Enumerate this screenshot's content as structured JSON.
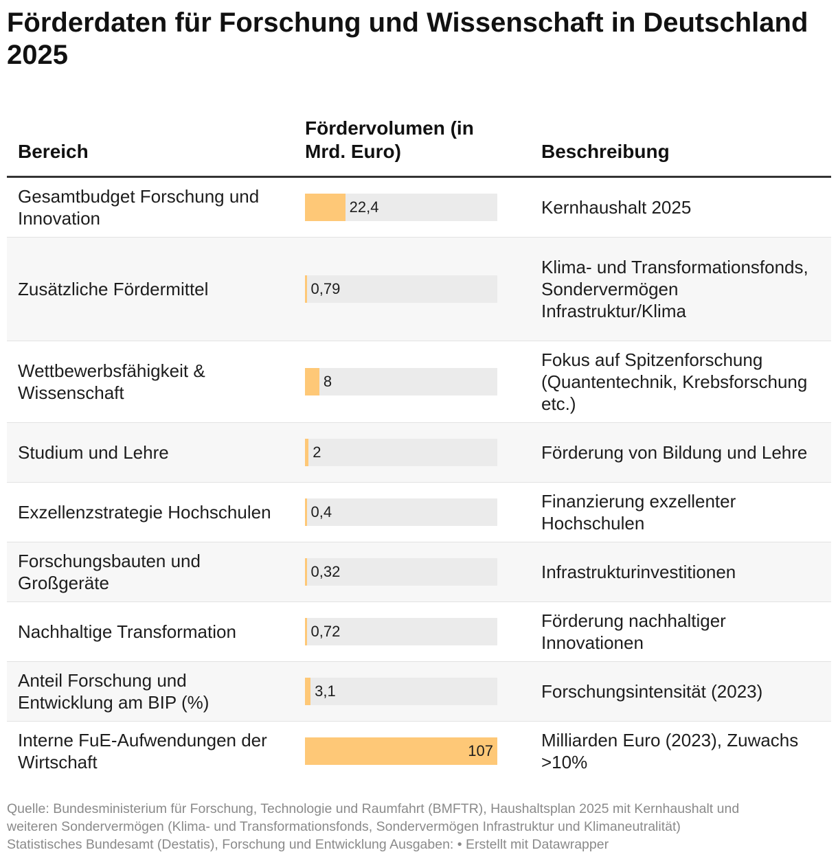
{
  "title": "Förderdaten für Forschung und Wissenschaft in Deutschland 2025",
  "columns": {
    "bereich": "Bereich",
    "volumen": "Fördervolumen (in Mrd. Euro)",
    "beschreibung": "Beschreibung"
  },
  "colors": {
    "bar": "#fec877",
    "track": "#ebebeb",
    "stripe": "#f7f7f7"
  },
  "chart_data": {
    "type": "table",
    "title": "Förderdaten für Forschung und Wissenschaft in Deutschland 2025",
    "xlim": [
      0,
      107
    ],
    "rows": [
      {
        "bereich": "Gesamtbudget Forschung und Innovation",
        "value": 22.4,
        "label": "22,4",
        "beschreibung": "Kernhaushalt 2025"
      },
      {
        "bereich": "Zusätzliche Fördermittel",
        "value": 0.79,
        "label": "0,79",
        "beschreibung": "Klima- und Transformationsfonds, Sondervermögen Infrastruktur/Klima"
      },
      {
        "bereich": "Wettbewerbsfähigkeit & Wissenschaft",
        "value": 8,
        "label": "8",
        "beschreibung": "Fokus auf Spitzenforschung (Quantentechnik, Krebsforschung etc.)"
      },
      {
        "bereich": "Studium und Lehre",
        "value": 2,
        "label": "2",
        "beschreibung": "Förderung von Bildung und Lehre"
      },
      {
        "bereich": "Exzellenzstrategie Hochschulen",
        "value": 0.4,
        "label": "0,4",
        "beschreibung": "Finanzierung exzellenter Hochschulen"
      },
      {
        "bereich": "Forschungsbauten und Großgeräte",
        "value": 0.32,
        "label": "0,32",
        "beschreibung": "Infrastrukturinvestitionen"
      },
      {
        "bereich": "Nachhaltige Transformation",
        "value": 0.72,
        "label": "0,72",
        "beschreibung": "Förderung nachhaltiger Innovationen"
      },
      {
        "bereich": "Anteil Forschung und Entwicklung am BIP (%)",
        "value": 3.1,
        "label": "3,1",
        "beschreibung": "Forschungsintensität (2023)"
      },
      {
        "bereich": "Interne FuE-Aufwendungen der Wirtschaft",
        "value": 107,
        "label": "107",
        "beschreibung": "Milliarden Euro (2023), Zuwachs >10%"
      }
    ]
  },
  "footer": {
    "line1": "Quelle: Bundesministerium für Forschung, Technologie und Raumfahrt (BMFTR), Haushaltsplan 2025 mit Kernhaushalt und",
    "line2": "weiteren Sondervermögen (Klima- und Transformationsfonds, Sondervermögen Infrastruktur und Klimaneutralität)",
    "line3": "Statistisches Bundesamt (Destatis), Forschung und Entwicklung Ausgaben: • Erstellt mit Datawrapper"
  }
}
